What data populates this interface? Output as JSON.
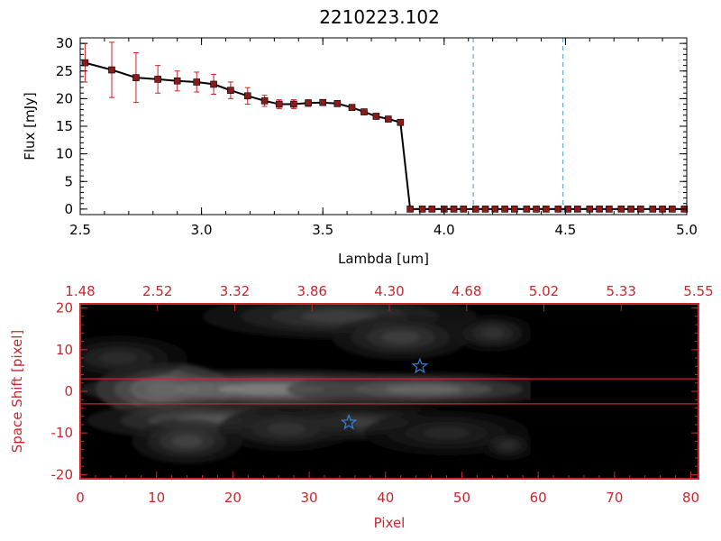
{
  "title": "2210223.102",
  "colors": {
    "spectrum_line": "#000000",
    "spectrum_marker": "#8b1a1a",
    "error_bar": "#d02020",
    "dashed_marker": "#3b9fc4",
    "image_frame": "#c8262c",
    "star_marker": "#3a7fe0",
    "spectrum_axes": "#000000"
  },
  "chart_data": [
    {
      "type": "line",
      "title": "2210223.102",
      "xlabel": "Lambda [um]",
      "ylabel": "Flux [mJy]",
      "xlim": [
        2.5,
        5.0
      ],
      "ylim": [
        -1,
        31
      ],
      "x_ticks": [
        "2.5",
        "3.0",
        "3.5",
        "4.0",
        "4.5",
        "5.0"
      ],
      "y_ticks": [
        "0",
        "5",
        "10",
        "15",
        "20",
        "25",
        "30"
      ],
      "grid": false,
      "vertical_dashed_lines": [
        4.12,
        4.49
      ],
      "x": [
        2.52,
        2.63,
        2.73,
        2.82,
        2.9,
        2.98,
        3.05,
        3.12,
        3.19,
        3.26,
        3.32,
        3.38,
        3.44,
        3.5,
        3.56,
        3.62,
        3.67,
        3.72,
        3.77,
        3.82,
        3.86,
        3.91,
        3.95,
        4.0,
        4.04,
        4.08,
        4.13,
        4.17,
        4.21,
        4.25,
        4.29,
        4.34,
        4.38,
        4.42,
        4.47,
        4.51,
        4.55,
        4.6,
        4.64,
        4.68,
        4.73,
        4.77,
        4.81,
        4.86,
        4.9,
        4.94,
        4.99
      ],
      "y": [
        26.5,
        25.2,
        23.8,
        23.5,
        23.2,
        23.0,
        22.6,
        21.5,
        20.5,
        19.6,
        19.0,
        19.0,
        19.2,
        19.3,
        19.1,
        18.4,
        17.6,
        16.8,
        16.3,
        15.7,
        0.0,
        0.0,
        0.0,
        0.0,
        0.0,
        0.0,
        0.0,
        0.0,
        0.0,
        0.0,
        0.0,
        0.0,
        0.0,
        0.0,
        0.0,
        0.0,
        0.0,
        0.0,
        0.0,
        0.0,
        0.0,
        0.0,
        0.0,
        0.0,
        0.0,
        0.0,
        0.0
      ],
      "y_err": [
        3.5,
        5.0,
        4.5,
        2.5,
        1.8,
        1.8,
        1.8,
        1.5,
        1.5,
        1.0,
        0.8,
        0.8,
        0.6,
        0.5,
        0.5,
        0.5,
        0.5,
        0.5,
        0.5,
        0.5,
        0,
        0,
        0,
        0,
        0,
        0,
        0,
        0,
        0,
        0,
        0,
        0,
        0,
        0,
        0,
        0,
        0,
        0,
        0,
        0,
        0,
        0,
        0,
        0,
        0,
        0,
        0
      ]
    },
    {
      "type": "heatmap",
      "xlabel": "Pixel",
      "ylabel": "Space Shift [pixel]",
      "xlim": [
        0,
        81
      ],
      "ylim": [
        -21,
        21
      ],
      "x_ticks": [
        "0",
        "10",
        "20",
        "30",
        "40",
        "50",
        "60",
        "70",
        "80"
      ],
      "y_ticks": [
        "-20",
        "-10",
        "0",
        "10",
        "20"
      ],
      "top_axis_ticks": [
        "1.48",
        "2.52",
        "3.32",
        "3.86",
        "4.30",
        "4.68",
        "5.02",
        "5.33",
        "5.55"
      ],
      "extraction_lines": [
        3,
        -3
      ],
      "signal_extent_pixel": 59,
      "stars": [
        {
          "pixel": 44.5,
          "shift": 6
        },
        {
          "pixel": 35.2,
          "shift": -7.5
        }
      ],
      "blobs": [
        {
          "pixel": 11,
          "shift": 0.5,
          "sx": 5,
          "sy": 3.5,
          "level": 1.0
        },
        {
          "pixel": 25,
          "shift": 0.5,
          "sx": 14,
          "sy": 2.6,
          "level": 0.62
        },
        {
          "pixel": 45,
          "shift": 0.5,
          "sx": 10,
          "sy": 2.2,
          "level": 0.5
        },
        {
          "pixel": 17,
          "shift": -7,
          "sx": 9,
          "sy": 2.6,
          "level": 0.42
        },
        {
          "pixel": 35,
          "shift": -7.5,
          "sx": 9,
          "sy": 2.4,
          "level": 0.3
        },
        {
          "pixel": 14,
          "shift": -12,
          "sx": 4,
          "sy": 3,
          "level": 0.32
        },
        {
          "pixel": 27,
          "shift": -9,
          "sx": 5,
          "sy": 3,
          "level": 0.25
        },
        {
          "pixel": 34,
          "shift": 18,
          "sx": 10,
          "sy": 3,
          "level": 0.3
        },
        {
          "pixel": 42,
          "shift": 13,
          "sx": 5,
          "sy": 3,
          "level": 0.3
        },
        {
          "pixel": 54,
          "shift": 14,
          "sx": 3,
          "sy": 2.5,
          "level": 0.25
        },
        {
          "pixel": 5,
          "shift": 8,
          "sx": 5,
          "sy": 3,
          "level": 0.22
        },
        {
          "pixel": 48,
          "shift": -10,
          "sx": 6,
          "sy": 3,
          "level": 0.18
        },
        {
          "pixel": 56,
          "shift": -13,
          "sx": 2,
          "sy": 2,
          "level": 0.22
        }
      ]
    }
  ]
}
